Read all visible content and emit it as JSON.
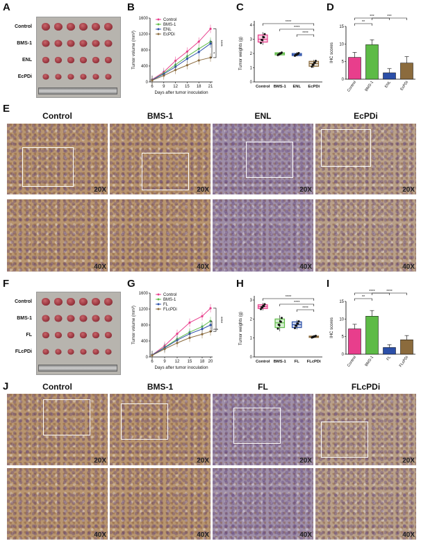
{
  "panels": {
    "A": "A",
    "B": "B",
    "C": "C",
    "D": "D",
    "E": "E",
    "F": "F",
    "G": "G",
    "H": "H",
    "I": "I",
    "J": "J"
  },
  "photoA": {
    "rows": [
      "Control",
      "BMS-1",
      "ENL",
      "EcPDi"
    ]
  },
  "photoF": {
    "rows": [
      "Control",
      "BMS-1",
      "FL",
      "FLcPDi"
    ]
  },
  "histE": {
    "titles": [
      "Control",
      "BMS-1",
      "ENL",
      "EcPDi"
    ],
    "mag_low": "20X",
    "mag_high": "40X"
  },
  "histJ": {
    "titles": [
      "Control",
      "BMS-1",
      "FL",
      "FLcPDi"
    ],
    "mag_low": "20X",
    "mag_high": "40X"
  },
  "colors": {
    "control": "#e83e8c",
    "bms1": "#5dbb46",
    "enl": "#2b4fa8",
    "ecpdi": "#8b6b3d"
  },
  "chart_data": [
    {
      "panel": "B",
      "type": "line",
      "x": [
        6,
        9,
        12,
        15,
        18,
        21
      ],
      "xlabel": "Days after tumor inoculation",
      "ylabel": "Tumor volume (mm³)",
      "ylim": [
        0,
        1600
      ],
      "yticks": [
        0,
        400,
        800,
        1200,
        1600
      ],
      "series": [
        {
          "name": "Control",
          "values": [
            60,
            250,
            530,
            760,
            1010,
            1330
          ]
        },
        {
          "name": "BMS-1",
          "values": [
            50,
            220,
            430,
            640,
            830,
            1010
          ]
        },
        {
          "name": "ENL",
          "values": [
            50,
            200,
            380,
            580,
            750,
            960
          ]
        },
        {
          "name": "EcPDi",
          "values": [
            40,
            160,
            300,
            420,
            540,
            610
          ]
        }
      ],
      "annotations": [
        "****",
        "*"
      ]
    },
    {
      "panel": "C",
      "type": "box",
      "categories": [
        "Control",
        "BMS-1",
        "ENL",
        "EcPDi"
      ],
      "ylabel": "Tumor weights (g)",
      "ylim": [
        0,
        4
      ],
      "yticks": [
        0,
        1,
        2,
        3,
        4
      ],
      "boxes": [
        {
          "min": 2.6,
          "q1": 2.8,
          "median": 3.0,
          "q3": 3.3,
          "max": 3.5
        },
        {
          "min": 1.85,
          "q1": 1.9,
          "median": 1.98,
          "q3": 2.05,
          "max": 2.1
        },
        {
          "min": 1.8,
          "q1": 1.85,
          "median": 1.92,
          "q3": 2.0,
          "max": 2.1
        },
        {
          "min": 1.0,
          "q1": 1.1,
          "median": 1.3,
          "q3": 1.45,
          "max": 1.55
        }
      ],
      "annotations": [
        "****",
        "****",
        "****"
      ]
    },
    {
      "panel": "D",
      "type": "bar",
      "categories": [
        "Control",
        "BMS-1",
        "ENL",
        "EcPDi"
      ],
      "ylabel": "IHC scores",
      "ylim": [
        0,
        15
      ],
      "yticks": [
        0,
        5,
        10,
        15
      ],
      "values": [
        6.2,
        9.8,
        1.8,
        4.6
      ],
      "errors": [
        1.4,
        1.4,
        1.2,
        1.8
      ],
      "annotations": [
        "***",
        "**",
        "***"
      ]
    },
    {
      "panel": "G",
      "type": "line",
      "x": [
        6,
        9,
        12,
        15,
        18,
        20
      ],
      "xlabel": "Days after tumor inoculation",
      "ylabel": "Tumor volume (mm³)",
      "ylim": [
        0,
        1600
      ],
      "yticks": [
        0,
        400,
        800,
        1200,
        1600
      ],
      "series": [
        {
          "name": "Control",
          "values": [
            50,
            280,
            580,
            860,
            1020,
            1220
          ]
        },
        {
          "name": "BMS-1",
          "values": [
            50,
            240,
            450,
            620,
            760,
            900
          ]
        },
        {
          "name": "FL",
          "values": [
            50,
            230,
            420,
            580,
            700,
            800
          ]
        },
        {
          "name": "FLcPDi",
          "values": [
            40,
            200,
            350,
            480,
            570,
            640
          ]
        }
      ],
      "annotations": [
        "****",
        "***"
      ]
    },
    {
      "panel": "H",
      "type": "box",
      "categories": [
        "Control",
        "BMS-1",
        "FL",
        "FLcPDi"
      ],
      "ylabel": "Tumor weights (g)",
      "ylim": [
        0,
        3
      ],
      "yticks": [
        0,
        1,
        2,
        3
      ],
      "boxes": [
        {
          "min": 2.45,
          "q1": 2.55,
          "median": 2.65,
          "q3": 2.75,
          "max": 2.85
        },
        {
          "min": 1.35,
          "q1": 1.55,
          "median": 1.8,
          "q3": 2.0,
          "max": 2.2
        },
        {
          "min": 1.45,
          "q1": 1.55,
          "median": 1.7,
          "q3": 1.85,
          "max": 1.95
        },
        {
          "min": 1.0,
          "q1": 1.03,
          "median": 1.06,
          "q3": 1.1,
          "max": 1.15
        }
      ],
      "annotations": [
        "****",
        "****",
        "****"
      ]
    },
    {
      "panel": "I",
      "type": "bar",
      "categories": [
        "Control",
        "BMS-1",
        "FL",
        "FLcPDi"
      ],
      "ylabel": "IHC scores",
      "ylim": [
        0,
        15
      ],
      "yticks": [
        0,
        5,
        10,
        15
      ],
      "values": [
        7.2,
        10.8,
        1.9,
        4.1
      ],
      "errors": [
        1.3,
        1.6,
        0.8,
        1.2
      ],
      "annotations": [
        "****",
        "**",
        "****"
      ]
    }
  ]
}
